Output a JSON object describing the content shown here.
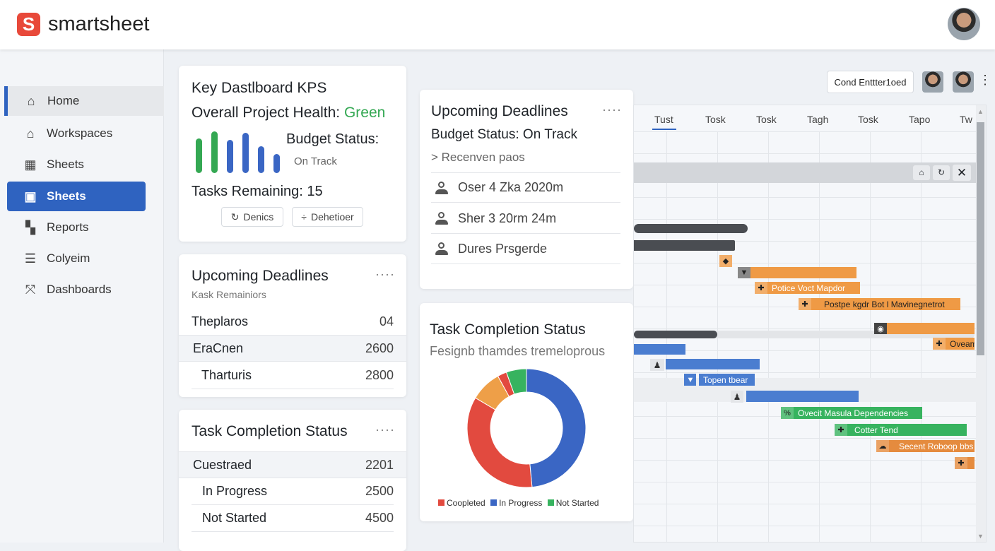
{
  "header": {
    "logo_letter": "S",
    "brand": "smartsheet"
  },
  "sidebar": {
    "items": [
      {
        "label": "Home",
        "icon": "home-icon"
      },
      {
        "label": "Workspaces",
        "icon": "workspaces-icon"
      },
      {
        "label": "Sheets",
        "icon": "sheets-icon"
      },
      {
        "label": "Sheets",
        "icon": "sheets-active-icon"
      },
      {
        "label": "Reports",
        "icon": "reports-icon"
      },
      {
        "label": "Colyeim",
        "icon": "form-icon"
      },
      {
        "label": "Dashboards",
        "icon": "dashboards-icon"
      }
    ]
  },
  "kpi": {
    "title": "Key Dastlboard KPS",
    "health_label": "Overall Project Health:",
    "health_value": "Green",
    "budget_label": "Budget Status:",
    "budget_value": "On Track",
    "tasks_remaining": "Tasks Remaining: 15",
    "btn1": "Denics",
    "btn2": "Dehetioer",
    "mini_bars": [
      0.75,
      0.9,
      0.73,
      0.87,
      0.58,
      0.42
    ],
    "colors": {
      "green": "#34a853",
      "blue": "#3a66c4"
    }
  },
  "deadlines_left": {
    "title": "Upcoming Deadlines",
    "subtitle": "Kask Remainiors",
    "rows": [
      {
        "label": "Theplaros",
        "value": "04"
      },
      {
        "label": "EraCnen",
        "value": "2600"
      },
      {
        "label": "Tharturis",
        "value": "2800"
      }
    ]
  },
  "completion_left": {
    "title": "Task Completion Status",
    "rows": [
      {
        "label": "Cuestraed",
        "value": "2201"
      },
      {
        "label": "In Progress",
        "value": "2500"
      },
      {
        "label": "Not Started",
        "value": "4500"
      }
    ]
  },
  "deadlines_mid": {
    "title": "Upcoming Deadlines",
    "budget": "Budget Status: On Track",
    "recent": "> Recenven paos",
    "items": [
      "Oser 4 Zka 2020m",
      "Sher 3 20rm 24m",
      "Dures Prsgerde"
    ]
  },
  "completion_mid": {
    "title": "Task Completion Status",
    "subtitle": "Fesignb thamdes tremeloprous",
    "chart_data": {
      "type": "pie",
      "title": "Task Completion Status",
      "slices": [
        {
          "name": "In Progress",
          "value": 48.5,
          "color": "#3a66c4"
        },
        {
          "name": "Completed",
          "value": 35,
          "color": "#e24a3f"
        },
        {
          "name": "",
          "value": 8.5,
          "color": "#ee9f48"
        },
        {
          "name": "",
          "value": 2.5,
          "color": "#e24a3f"
        },
        {
          "name": "Not Started",
          "value": 5.5,
          "color": "#37b35f"
        }
      ],
      "legend": [
        {
          "label": "Coopleted",
          "color": "#e24a3f"
        },
        {
          "label": "In Progress",
          "color": "#3a66c4"
        },
        {
          "label": "Not Started",
          "color": "#37b35f"
        }
      ],
      "legend_position": "bottom"
    }
  },
  "gantt": {
    "filter_button": "Cond Enttter1oed",
    "tabs": [
      "Tust",
      "Tosk",
      "Tosk",
      "Tagh",
      "Tosk",
      "Tapo",
      "Tw"
    ],
    "bar_labels": [
      "Potice Voct Mapdor",
      "Postpe kgdr Bot l Mavinegnetrot",
      "Oveam",
      "Topen tbear",
      "Ovecit Masula Dependencies",
      "Cotter Tend",
      "Secent Roboop bbs"
    ]
  }
}
